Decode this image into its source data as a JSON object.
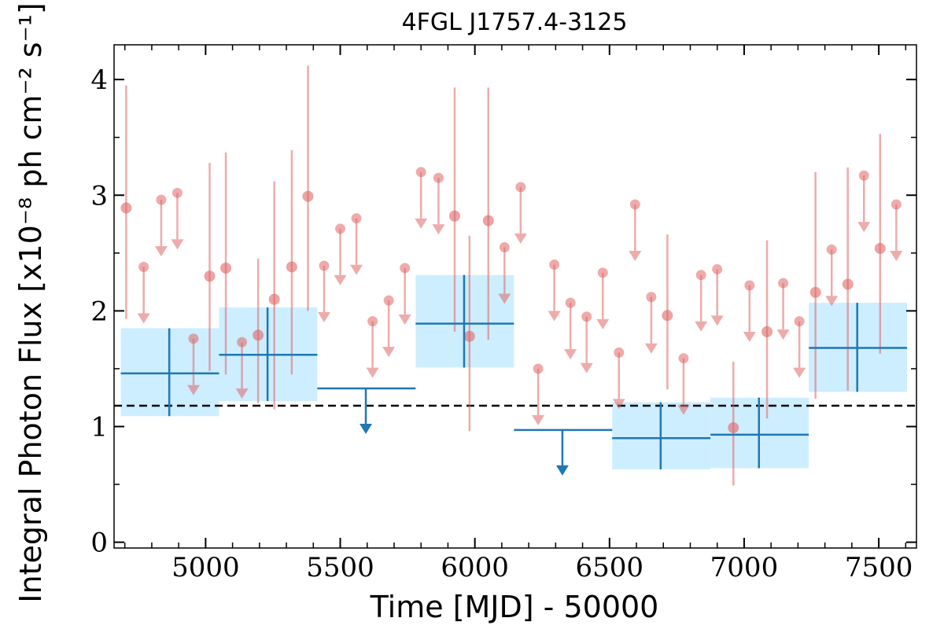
{
  "chart_data": {
    "type": "scatter",
    "title": "4FGL J1757.4-3125",
    "xlabel": "Time [MJD] - 50000",
    "ylabel": "Integral Photon Flux [x10⁻⁸ ph cm⁻² s⁻¹]",
    "xlim": [
      4660,
      7640
    ],
    "ylim": [
      -0.05,
      4.3
    ],
    "x_ticks": [
      5000,
      5500,
      6000,
      6500,
      7000,
      7500
    ],
    "x_tick_labels": [
      "5000",
      "5500",
      "6000",
      "6500",
      "7000",
      "7500"
    ],
    "y_ticks": [
      0,
      1,
      2,
      3,
      4
    ],
    "y_tick_labels": [
      "0",
      "1",
      "2",
      "3",
      "4"
    ],
    "x_minor_step": 100,
    "y_minor_step": 0.5,
    "reference_line": {
      "y": 1.18,
      "style": "dashed",
      "color": "#000000"
    },
    "colors": {
      "fine_bins": "#e06666",
      "coarse_bins": "#1f77b4",
      "coarse_box": "#cdeeff"
    },
    "series": [
      {
        "kind": "fine-detection",
        "points": [
          {
            "x": 4705,
            "y": 2.89,
            "lo": 1.93,
            "hi": 3.95
          },
          {
            "x": 5015,
            "y": 2.3,
            "lo": 1.48,
            "hi": 3.28
          },
          {
            "x": 5075,
            "y": 2.37,
            "lo": 1.45,
            "hi": 3.37
          },
          {
            "x": 5195,
            "y": 1.79,
            "lo": 1.2,
            "hi": 2.45
          },
          {
            "x": 5255,
            "y": 2.1,
            "lo": 1.15,
            "hi": 3.12
          },
          {
            "x": 5320,
            "y": 2.38,
            "lo": 1.45,
            "hi": 3.39
          },
          {
            "x": 5380,
            "y": 2.99,
            "lo": 2.0,
            "hi": 4.12
          },
          {
            "x": 5925,
            "y": 2.82,
            "lo": 1.82,
            "hi": 3.93
          },
          {
            "x": 5980,
            "y": 1.78,
            "lo": 0.96,
            "hi": 2.65
          },
          {
            "x": 6050,
            "y": 2.78,
            "lo": 1.75,
            "hi": 3.93
          },
          {
            "x": 6715,
            "y": 1.96,
            "lo": 1.32,
            "hi": 2.66
          },
          {
            "x": 6960,
            "y": 0.99,
            "lo": 0.49,
            "hi": 1.56
          },
          {
            "x": 7085,
            "y": 1.82,
            "lo": 1.07,
            "hi": 2.61
          },
          {
            "x": 7265,
            "y": 2.16,
            "lo": 1.24,
            "hi": 3.2
          },
          {
            "x": 7385,
            "y": 2.23,
            "lo": 1.31,
            "hi": 3.24
          },
          {
            "x": 7505,
            "y": 2.54,
            "lo": 1.63,
            "hi": 3.53
          }
        ]
      },
      {
        "kind": "fine-upper-limit",
        "points": [
          {
            "x": 4770,
            "y": 2.38
          },
          {
            "x": 4835,
            "y": 2.96
          },
          {
            "x": 4895,
            "y": 3.02
          },
          {
            "x": 4955,
            "y": 1.76
          },
          {
            "x": 5135,
            "y": 1.73
          },
          {
            "x": 5440,
            "y": 2.39
          },
          {
            "x": 5500,
            "y": 2.71
          },
          {
            "x": 5560,
            "y": 2.8
          },
          {
            "x": 5620,
            "y": 1.91
          },
          {
            "x": 5680,
            "y": 2.09
          },
          {
            "x": 5740,
            "y": 2.37
          },
          {
            "x": 5800,
            "y": 3.2
          },
          {
            "x": 5865,
            "y": 3.15
          },
          {
            "x": 6110,
            "y": 2.55
          },
          {
            "x": 6170,
            "y": 3.07
          },
          {
            "x": 6235,
            "y": 1.5
          },
          {
            "x": 6295,
            "y": 2.4
          },
          {
            "x": 6355,
            "y": 2.07
          },
          {
            "x": 6415,
            "y": 1.95
          },
          {
            "x": 6475,
            "y": 2.33
          },
          {
            "x": 6535,
            "y": 1.64
          },
          {
            "x": 6595,
            "y": 2.92
          },
          {
            "x": 6655,
            "y": 2.12
          },
          {
            "x": 6775,
            "y": 1.59
          },
          {
            "x": 6840,
            "y": 2.31
          },
          {
            "x": 6900,
            "y": 2.36
          },
          {
            "x": 7020,
            "y": 2.22
          },
          {
            "x": 7145,
            "y": 2.24
          },
          {
            "x": 7205,
            "y": 1.91
          },
          {
            "x": 7325,
            "y": 2.53
          },
          {
            "x": 7445,
            "y": 3.17
          },
          {
            "x": 7565,
            "y": 2.92
          }
        ]
      },
      {
        "kind": "coarse-detection",
        "points": [
          {
            "x": 4865,
            "x0": 4685,
            "x1": 5050,
            "y": 1.46,
            "lo": 1.09,
            "hi": 1.85
          },
          {
            "x": 5230,
            "x0": 5050,
            "x1": 5415,
            "y": 1.62,
            "lo": 1.22,
            "hi": 2.03
          },
          {
            "x": 5960,
            "x0": 5780,
            "x1": 6145,
            "y": 1.89,
            "lo": 1.51,
            "hi": 2.31
          },
          {
            "x": 6690,
            "x0": 6510,
            "x1": 6875,
            "y": 0.9,
            "lo": 0.63,
            "hi": 1.21
          },
          {
            "x": 7055,
            "x0": 6875,
            "x1": 7240,
            "y": 0.93,
            "lo": 0.64,
            "hi": 1.25
          },
          {
            "x": 7420,
            "x0": 7240,
            "x1": 7605,
            "y": 1.68,
            "lo": 1.3,
            "hi": 2.07
          }
        ]
      },
      {
        "kind": "coarse-upper-limit",
        "points": [
          {
            "x": 5595,
            "x0": 5415,
            "x1": 5780,
            "y": 1.33
          },
          {
            "x": 6325,
            "x0": 6145,
            "x1": 6510,
            "y": 0.97
          }
        ]
      }
    ]
  }
}
